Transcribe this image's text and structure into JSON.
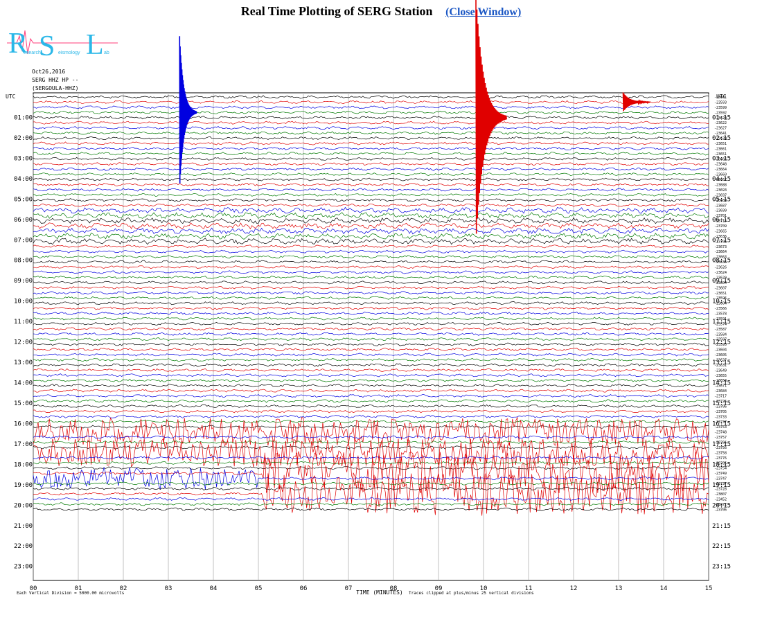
{
  "page": {
    "title": "Real Time Plotting of SERG Station",
    "close_link": "(Close Window)"
  },
  "logo": {
    "letters": [
      "R",
      "S",
      "L"
    ],
    "tagline_1": "esearch",
    "tagline_2": "eismology",
    "tagline_3": "ab",
    "color": "#2ab7e8"
  },
  "header": {
    "date": "Oct26,2016",
    "channel": "SERG HHZ HP --",
    "station": "(SERGOULA-HHZ)"
  },
  "chart_data": {
    "type": "line",
    "title": "Real Time Plotting of SERG Station",
    "xlabel": "TIME (MINUTES)",
    "x_ticks": [
      "00",
      "01",
      "02",
      "03",
      "04",
      "05",
      "06",
      "07",
      "08",
      "09",
      "10",
      "11",
      "12",
      "13",
      "14",
      "15"
    ],
    "xlim": [
      0,
      15
    ],
    "left_axis_label": "UTC",
    "right_axis_label": "UTC",
    "left_hour_labels": [
      "01:00",
      "02:00",
      "03:00",
      "04:00",
      "05:00",
      "06:00",
      "07:00",
      "08:00",
      "09:00",
      "10:00",
      "11:00",
      "12:00",
      "13:00",
      "14:00",
      "15:00",
      "16:00",
      "17:00",
      "18:00",
      "19:00",
      "20:00",
      "21:00",
      "22:00",
      "23:00"
    ],
    "right_hour_labels": [
      "01:15",
      "02:15",
      "03:15",
      "04:15",
      "05:15",
      "06:15",
      "07:15",
      "08:15",
      "09:15",
      "10:15",
      "11:15",
      "12:15",
      "13:15",
      "14:15",
      "15:15",
      "16:15",
      "17:15",
      "18:15",
      "19:15",
      "20:15",
      "21:15",
      "22:15",
      "23:15"
    ],
    "trace_count": 81,
    "trace_colors": [
      "#000000",
      "#e00000",
      "#0000e0",
      "#007a00"
    ],
    "trace_offsets": [
      "-23601",
      "-23593",
      "-23599",
      "-23592",
      "-23620",
      "-23622",
      "-23627",
      "-23641",
      "-23639",
      "-23651",
      "-23661",
      "-23651",
      "-23666",
      "-23648",
      "-23664",
      "-23660",
      "-23667",
      "-23688",
      "-23693",
      "-23697",
      "-23689",
      "-23687",
      "-23699",
      "-23701",
      "-23715",
      "-23709",
      "-23665",
      "-23636",
      "-23706",
      "-23673",
      "-23664",
      "-23663",
      "-23636",
      "-23626",
      "-23624",
      "-23629",
      "-23604",
      "-23607",
      "-23651",
      "-23596",
      "-23604",
      "-23566",
      "-23578",
      "-23591",
      "-23574",
      "-23587",
      "-23584",
      "-23587",
      "-23595",
      "-23604",
      "-23605",
      "-23627",
      "-23631",
      "-23649",
      "-23655",
      "-23658",
      "-23671",
      "-23684",
      "-23717",
      "-23726",
      "-23706",
      "-23705",
      "-23733",
      "-23737",
      "-23753",
      "-23748",
      "-23757",
      "-23766",
      "-23756",
      "-23758",
      "-23776",
      "-23765",
      "-23754",
      "-23749",
      "-23747",
      "-23737",
      "-23728",
      "-23807",
      "-23452",
      "-23872",
      "-23706"
    ],
    "events": [
      {
        "trace": 3,
        "minute": 3.25,
        "amplitude": "large",
        "color": "#0000e0"
      },
      {
        "trace": 4,
        "minute": 9.83,
        "amplitude": "very large",
        "color": "#e00000"
      },
      {
        "trace": 1,
        "minute": 13.1,
        "amplitude": "moderate",
        "color": "#e00000"
      },
      {
        "trace": 68,
        "minute": 0.0,
        "amplitude": "noisy",
        "color": "#e00000"
      },
      {
        "trace": 73,
        "minute": 5.2,
        "amplitude": "noisy",
        "color": "#e00000"
      }
    ],
    "footnote_left": "Each Vertical Division = 5000.00 microvolts",
    "footnote_right": "Traces clipped at plus/minus 25 vertical divisions"
  }
}
